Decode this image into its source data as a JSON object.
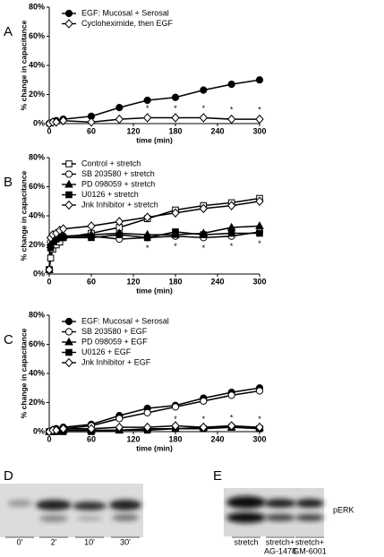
{
  "chart_data": [
    {
      "type": "line",
      "panel": "A",
      "x": [
        0,
        5,
        10,
        20,
        60,
        100,
        140,
        180,
        220,
        260,
        300
      ],
      "series": [
        {
          "name": "EGF: Mucosal + Serosal",
          "color": "#000000",
          "marker": "circle",
          "filled": true,
          "values": [
            0,
            1,
            2,
            3,
            5,
            11,
            16,
            18,
            23,
            27,
            30
          ]
        },
        {
          "name": "Cycloheximide, then EGF",
          "color": "#000000",
          "marker": "diamond",
          "filled": false,
          "values": [
            0,
            1,
            1,
            2,
            1,
            3,
            4,
            4,
            4,
            3,
            3
          ]
        }
      ],
      "markers": {
        "label": "*",
        "x": [
          100,
          140,
          180,
          220,
          260,
          300
        ]
      },
      "xlabel": "time (min)",
      "ylabel": "% change in capacitance",
      "xlim": [
        0,
        300
      ],
      "xticks": [
        0,
        60,
        120,
        180,
        240,
        300
      ],
      "ylim": [
        0,
        80
      ],
      "yticks": [
        {
          "value": 0,
          "label": "0%"
        },
        {
          "value": 20,
          "label": "20%"
        },
        {
          "value": 40,
          "label": "40%"
        },
        {
          "value": 60,
          "label": "60%"
        },
        {
          "value": 80,
          "label": "80%"
        }
      ]
    },
    {
      "type": "line",
      "panel": "B",
      "x": [
        0,
        2,
        5,
        10,
        15,
        20,
        60,
        100,
        140,
        180,
        220,
        260,
        300
      ],
      "series": [
        {
          "name": "Control + stretch",
          "color": "#000000",
          "marker": "square",
          "filled": false,
          "values": [
            3,
            11,
            17,
            20,
            22,
            25,
            28,
            32,
            38,
            44,
            47,
            49,
            52
          ]
        },
        {
          "name": "SB 203580 + stretch",
          "color": "#000000",
          "marker": "circle",
          "filled": false,
          "values": [
            3,
            22,
            24,
            25,
            25,
            26,
            26,
            24,
            25,
            26,
            25,
            26,
            29
          ]
        },
        {
          "name": "PD 098059 + stretch",
          "color": "#000000",
          "marker": "triangle",
          "filled": true,
          "values": [
            3,
            20,
            23,
            25,
            25,
            26,
            27,
            28,
            27,
            27,
            28,
            32,
            33
          ]
        },
        {
          "name": "U0126 + stretch",
          "color": "#000000",
          "marker": "square",
          "filled": true,
          "values": [
            3,
            18,
            22,
            24,
            25,
            25,
            25,
            27,
            25,
            29,
            27,
            28,
            28
          ]
        },
        {
          "name": "Jnk Inhibitor + stretch",
          "color": "#000000",
          "marker": "diamond",
          "filled": false,
          "values": [
            3,
            25,
            27,
            28,
            30,
            31,
            33,
            36,
            39,
            42,
            45,
            47,
            50
          ]
        }
      ],
      "markers": {
        "label": "*",
        "x": [
          140,
          180,
          220,
          260,
          300
        ]
      },
      "xlabel": "time (min)",
      "ylabel": "% change in capacitance",
      "xlim": [
        0,
        300
      ],
      "xticks": [
        0,
        60,
        120,
        180,
        240,
        300
      ],
      "ylim": [
        0,
        80
      ],
      "yticks": [
        {
          "value": 0,
          "label": "0%"
        },
        {
          "value": 20,
          "label": "20%"
        },
        {
          "value": 40,
          "label": "40%"
        },
        {
          "value": 60,
          "label": "60%"
        },
        {
          "value": 80,
          "label": "80%"
        }
      ]
    },
    {
      "type": "line",
      "panel": "C",
      "x": [
        0,
        5,
        10,
        20,
        60,
        100,
        140,
        180,
        220,
        260,
        300
      ],
      "series": [
        {
          "name": "EGF: Mucosal + Serosal",
          "color": "#000000",
          "marker": "circle",
          "filled": true,
          "values": [
            0,
            1,
            2,
            3,
            5,
            11,
            16,
            18,
            23,
            27,
            30
          ]
        },
        {
          "name": "SB 203580 + EGF",
          "color": "#000000",
          "marker": "circle",
          "filled": false,
          "values": [
            0,
            1,
            1,
            2,
            4,
            9,
            13,
            17,
            21,
            25,
            28
          ]
        },
        {
          "name": "PD 098059 + EGF",
          "color": "#000000",
          "marker": "triangle",
          "filled": true,
          "values": [
            0,
            0,
            0,
            1,
            1,
            1,
            2,
            2,
            3,
            3,
            3
          ]
        },
        {
          "name": "U0126 + EGF",
          "color": "#000000",
          "marker": "square",
          "filled": true,
          "values": [
            0,
            0,
            0,
            0,
            0,
            1,
            1,
            2,
            2,
            3,
            2
          ]
        },
        {
          "name": "Jnk Inhibitor + EGF",
          "color": "#000000",
          "marker": "diamond",
          "filled": false,
          "values": [
            0,
            1,
            1,
            2,
            2,
            3,
            3,
            4,
            3,
            4,
            3
          ]
        }
      ],
      "markers": {
        "label": "*",
        "x": [
          180,
          220,
          260,
          300
        ]
      },
      "xlabel": "time (min)",
      "ylabel": "% change in capacitance",
      "xlim": [
        0,
        300
      ],
      "xticks": [
        0,
        60,
        120,
        180,
        240,
        300
      ],
      "ylim": [
        0,
        80
      ],
      "yticks": [
        {
          "value": 0,
          "label": "0%"
        },
        {
          "value": 20,
          "label": "20%"
        },
        {
          "value": 40,
          "label": "40%"
        },
        {
          "value": 60,
          "label": "60%"
        },
        {
          "value": 80,
          "label": "80%"
        }
      ]
    }
  ],
  "blots": [
    {
      "panel": "D",
      "lanes": [
        [
          "0'"
        ],
        [
          "2'"
        ],
        [
          "10'"
        ],
        [
          "30'"
        ]
      ]
    },
    {
      "panel": "E",
      "lanes": [
        [
          "stretch"
        ],
        [
          "stretch+",
          "AG-1478"
        ],
        [
          "stretch+",
          "GM-6001"
        ]
      ],
      "label": "pERK"
    }
  ]
}
